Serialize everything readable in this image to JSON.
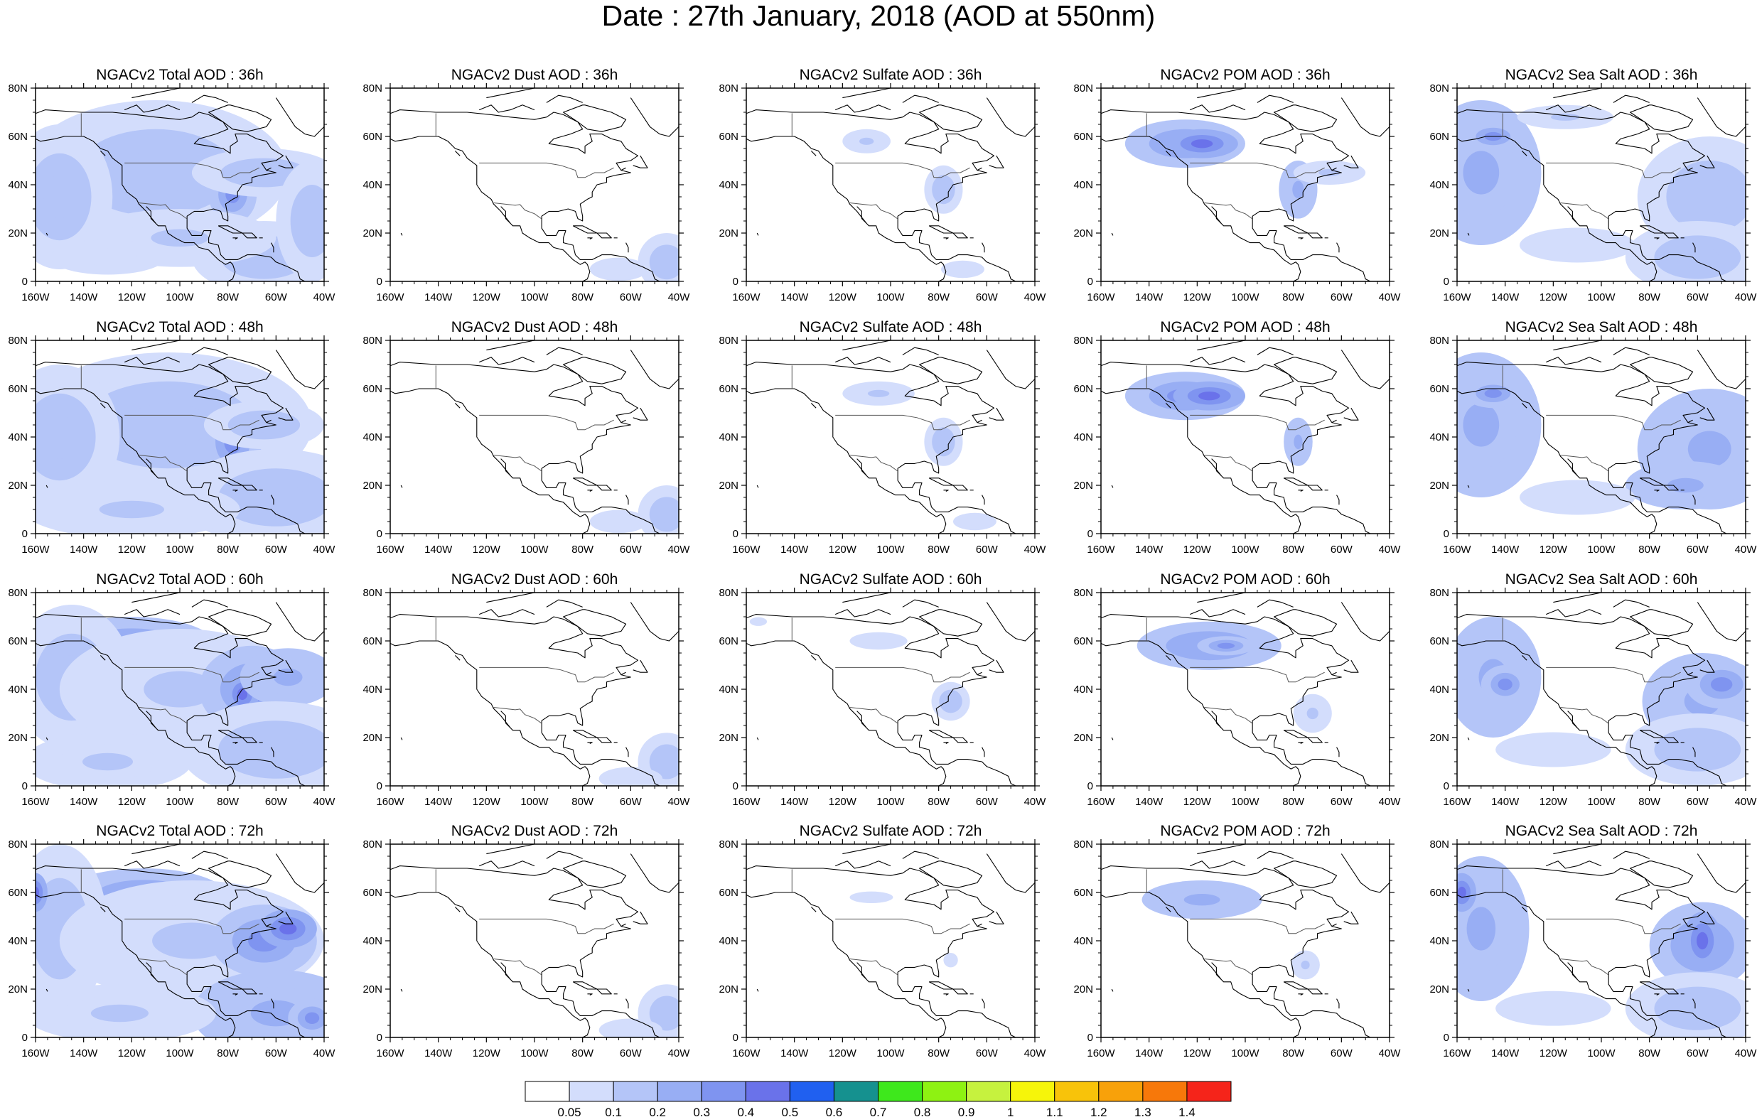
{
  "title": "Date : 27th January, 2018 (AOD at 550nm)",
  "panel_titles": [
    [
      "NGACv2 Total AOD : 36h",
      "NGACv2 Dust AOD : 36h",
      "NGACv2 Sulfate AOD : 36h",
      "NGACv2 POM AOD : 36h",
      "NGACv2 Sea Salt AOD : 36h"
    ],
    [
      "NGACv2 Total AOD : 48h",
      "NGACv2 Dust AOD : 48h",
      "NGACv2 Sulfate AOD : 48h",
      "NGACv2 POM AOD : 48h",
      "NGACv2 Sea Salt AOD : 48h"
    ],
    [
      "NGACv2 Total AOD : 60h",
      "NGACv2 Dust AOD : 60h",
      "NGACv2 Sulfate AOD : 60h",
      "NGACv2 POM AOD : 60h",
      "NGACv2 Sea Salt AOD : 60h"
    ],
    [
      "NGACv2 Total AOD : 72h",
      "NGACv2 Dust AOD : 72h",
      "NGACv2 Sulfate AOD : 72h",
      "NGACv2 POM AOD : 72h",
      "NGACv2 Sea Salt  AOD : 72h"
    ]
  ],
  "axes": {
    "lon_labels": [
      "160W",
      "140W",
      "120W",
      "100W",
      "80W",
      "60W",
      "40W"
    ],
    "lat_labels": [
      "0",
      "20N",
      "40N",
      "60N",
      "80N"
    ],
    "lon_range": [
      -160,
      -40
    ],
    "lat_range": [
      0,
      80
    ]
  },
  "colorbar": {
    "labels": [
      "0.05",
      "0.1",
      "0.2",
      "0.3",
      "0.4",
      "0.5",
      "0.6",
      "0.7",
      "0.8",
      "0.9",
      "1",
      "1.1",
      "1.2",
      "1.3",
      "1.4"
    ],
    "colors": [
      "#ffffff",
      "#d3ddfc",
      "#b4c5f8",
      "#98aef4",
      "#7f94f0",
      "#6a72ea",
      "#2060f0",
      "#15918f",
      "#3ee81c",
      "#8ef212",
      "#c6f23e",
      "#f6f50a",
      "#f8c30a",
      "#f8a10a",
      "#f7780a",
      "#f5241a"
    ]
  },
  "colors": {
    "coast": "#000000",
    "aerosol_light": "#d3ddfc",
    "aerosol_mid": "#b4c5f8",
    "aerosol_strong": "#98aef4",
    "aerosol_peak": "#6a72ea",
    "aerosol_max": "#15918f"
  },
  "fields": {
    "total": {
      "36": [
        [
          -125,
          57,
          30,
          12,
          0.35
        ],
        [
          -118,
          57,
          20,
          8,
          0.5
        ],
        [
          -115,
          58,
          8,
          4,
          0.8
        ],
        [
          -110,
          45,
          55,
          30,
          0.13
        ],
        [
          -78,
          36,
          10,
          12,
          0.3
        ],
        [
          -65,
          45,
          30,
          10,
          0.18
        ],
        [
          -150,
          35,
          22,
          30,
          0.16
        ],
        [
          -65,
          10,
          30,
          15,
          0.16
        ],
        [
          -100,
          18,
          40,
          12,
          0.1
        ],
        [
          -130,
          10,
          40,
          12,
          0.08
        ],
        [
          -45,
          25,
          15,
          25,
          0.13
        ]
      ],
      "48": [
        [
          -125,
          57,
          30,
          12,
          0.35
        ],
        [
          -115,
          57,
          18,
          7,
          0.55
        ],
        [
          -112,
          57,
          6,
          3,
          0.8
        ],
        [
          -105,
          45,
          60,
          30,
          0.14
        ],
        [
          -78,
          38,
          12,
          16,
          0.3
        ],
        [
          -150,
          40,
          25,
          30,
          0.18
        ],
        [
          -60,
          15,
          40,
          20,
          0.16
        ],
        [
          -120,
          10,
          45,
          12,
          0.1
        ],
        [
          -65,
          45,
          25,
          10,
          0.16
        ]
      ],
      "60": [
        [
          -120,
          58,
          35,
          12,
          0.3
        ],
        [
          -110,
          58,
          15,
          6,
          0.4
        ],
        [
          -145,
          45,
          25,
          30,
          0.18
        ],
        [
          -100,
          40,
          50,
          25,
          0.12
        ],
        [
          -70,
          40,
          22,
          18,
          0.3
        ],
        [
          -74,
          38,
          7,
          8,
          0.42
        ],
        [
          -55,
          45,
          20,
          12,
          0.2
        ],
        [
          -60,
          15,
          40,
          20,
          0.18
        ],
        [
          -130,
          10,
          35,
          12,
          0.1
        ]
      ],
      "72": [
        [
          -115,
          58,
          35,
          12,
          0.25
        ],
        [
          -150,
          45,
          20,
          35,
          0.18
        ],
        [
          -160,
          60,
          5,
          8,
          0.45
        ],
        [
          -95,
          40,
          55,
          25,
          0.12
        ],
        [
          -65,
          40,
          22,
          15,
          0.32
        ],
        [
          -55,
          45,
          12,
          8,
          0.45
        ],
        [
          -60,
          10,
          35,
          18,
          0.2
        ],
        [
          -125,
          10,
          40,
          12,
          0.1
        ],
        [
          -45,
          8,
          10,
          8,
          0.35
        ]
      ]
    },
    "dust": {
      "36": [
        [
          -45,
          8,
          12,
          12,
          0.14
        ],
        [
          -65,
          5,
          20,
          8,
          0.08
        ]
      ],
      "48": [
        [
          -45,
          8,
          12,
          12,
          0.14
        ],
        [
          -65,
          5,
          20,
          8,
          0.08
        ]
      ],
      "60": [
        [
          -45,
          10,
          12,
          12,
          0.14
        ],
        [
          -60,
          3,
          22,
          8,
          0.08
        ]
      ],
      "72": [
        [
          -45,
          10,
          12,
          12,
          0.14
        ],
        [
          -60,
          3,
          22,
          8,
          0.08
        ]
      ]
    },
    "sulfate": {
      "36": [
        [
          -78,
          38,
          8,
          10,
          0.13
        ],
        [
          -110,
          58,
          10,
          5,
          0.1
        ],
        [
          -70,
          5,
          15,
          6,
          0.07
        ]
      ],
      "48": [
        [
          -78,
          38,
          8,
          10,
          0.13
        ],
        [
          -105,
          58,
          15,
          5,
          0.1
        ],
        [
          -65,
          5,
          15,
          6,
          0.07
        ]
      ],
      "60": [
        [
          -75,
          35,
          8,
          8,
          0.14
        ],
        [
          -155,
          68,
          6,
          3,
          0.07
        ],
        [
          -105,
          60,
          20,
          6,
          0.08
        ]
      ],
      "72": [
        [
          -75,
          32,
          5,
          5,
          0.08
        ],
        [
          -108,
          58,
          15,
          4,
          0.08
        ]
      ]
    },
    "pom": {
      "36": [
        [
          -125,
          57,
          25,
          10,
          0.32
        ],
        [
          -118,
          57,
          15,
          6,
          0.45
        ],
        [
          -78,
          38,
          8,
          12,
          0.22
        ],
        [
          -65,
          45,
          15,
          5,
          0.12
        ]
      ],
      "48": [
        [
          -125,
          57,
          25,
          10,
          0.32
        ],
        [
          -115,
          57,
          15,
          6,
          0.45
        ],
        [
          -78,
          38,
          6,
          10,
          0.2
        ]
      ],
      "60": [
        [
          -115,
          58,
          30,
          10,
          0.25
        ],
        [
          -108,
          58,
          12,
          4,
          0.35
        ],
        [
          -72,
          30,
          8,
          8,
          0.1
        ]
      ],
      "72": [
        [
          -118,
          57,
          25,
          8,
          0.22
        ],
        [
          -75,
          30,
          6,
          6,
          0.1
        ]
      ]
    },
    "seasalt": {
      "36": [
        [
          -150,
          45,
          25,
          30,
          0.2
        ],
        [
          -145,
          60,
          12,
          6,
          0.3
        ],
        [
          -55,
          35,
          30,
          25,
          0.15
        ],
        [
          -60,
          10,
          30,
          15,
          0.15
        ],
        [
          -110,
          15,
          40,
          12,
          0.08
        ],
        [
          -115,
          68,
          20,
          5,
          0.1
        ]
      ],
      "48": [
        [
          -150,
          45,
          25,
          30,
          0.2
        ],
        [
          -145,
          58,
          12,
          6,
          0.3
        ],
        [
          -55,
          35,
          30,
          25,
          0.2
        ],
        [
          -65,
          20,
          25,
          10,
          0.22
        ],
        [
          -110,
          15,
          40,
          12,
          0.08
        ]
      ],
      "60": [
        [
          -145,
          45,
          20,
          25,
          0.2
        ],
        [
          -140,
          42,
          10,
          8,
          0.3
        ],
        [
          -58,
          35,
          25,
          20,
          0.22
        ],
        [
          -50,
          42,
          15,
          10,
          0.3
        ],
        [
          -60,
          15,
          30,
          15,
          0.16
        ],
        [
          -120,
          15,
          40,
          12,
          0.08
        ]
      ],
      "72": [
        [
          -150,
          45,
          20,
          30,
          0.2
        ],
        [
          -158,
          60,
          6,
          8,
          0.45
        ],
        [
          -58,
          38,
          22,
          18,
          0.28
        ],
        [
          -58,
          40,
          8,
          12,
          0.45
        ],
        [
          -60,
          12,
          30,
          15,
          0.16
        ],
        [
          -120,
          12,
          40,
          12,
          0.08
        ]
      ]
    }
  }
}
